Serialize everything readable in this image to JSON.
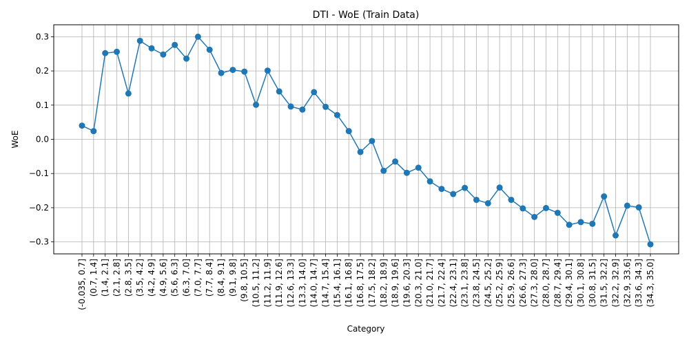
{
  "chart_data": {
    "type": "line",
    "title": "DTI - WoE (Train Data)",
    "xlabel": "Category",
    "ylabel": "WoE",
    "ylim": [
      -0.335,
      0.335
    ],
    "yticks": [
      -0.3,
      -0.2,
      -0.1,
      0.0,
      0.1,
      0.2,
      0.3
    ],
    "ytick_labels": [
      "−0.3",
      "−0.2",
      "−0.1",
      "0.0",
      "0.1",
      "0.2",
      "0.3"
    ],
    "grid": true,
    "color": "#1f77b4",
    "marker": "circle",
    "categories": [
      "(-0.035, 0.7]",
      "(0.7, 1.4]",
      "(1.4, 2.1]",
      "(2.1, 2.8]",
      "(2.8, 3.5]",
      "(3.5, 4.2]",
      "(4.2, 4.9]",
      "(4.9, 5.6]",
      "(5.6, 6.3]",
      "(6.3, 7.0]",
      "(7.0, 7.7]",
      "(7.7, 8.4]",
      "(8.4, 9.1]",
      "(9.1, 9.8]",
      "(9.8, 10.5]",
      "(10.5, 11.2]",
      "(11.2, 11.9]",
      "(11.9, 12.6]",
      "(12.6, 13.3]",
      "(13.3, 14.0]",
      "(14.0, 14.7]",
      "(14.7, 15.4]",
      "(15.4, 16.1]",
      "(16.1, 16.8]",
      "(16.8, 17.5]",
      "(17.5, 18.2]",
      "(18.2, 18.9]",
      "(18.9, 19.6]",
      "(19.6, 20.3]",
      "(20.3, 21.0]",
      "(21.0, 21.7]",
      "(21.7, 22.4]",
      "(22.4, 23.1]",
      "(23.1, 23.8]",
      "(23.8, 24.5]",
      "(24.5, 25.2]",
      "(25.2, 25.9]",
      "(25.9, 26.6]",
      "(26.6, 27.3]",
      "(27.3, 28.0]",
      "(28.0, 28.7]",
      "(28.7, 29.4]",
      "(29.4, 30.1]",
      "(30.1, 30.8]",
      "(30.8, 31.5]",
      "(31.5, 32.2]",
      "(32.2, 32.9]",
      "(32.9, 33.6]",
      "(33.6, 34.3]",
      "(34.3, 35.0]"
    ],
    "values": [
      0.04,
      0.024,
      0.252,
      0.256,
      0.134,
      0.288,
      0.266,
      0.248,
      0.276,
      0.236,
      0.3,
      0.262,
      0.194,
      0.203,
      0.198,
      0.101,
      0.201,
      0.14,
      0.096,
      0.087,
      0.138,
      0.095,
      0.071,
      0.024,
      -0.037,
      -0.005,
      -0.092,
      -0.065,
      -0.098,
      -0.083,
      -0.123,
      -0.145,
      -0.16,
      -0.142,
      -0.177,
      -0.187,
      -0.141,
      -0.177,
      -0.202,
      -0.227,
      -0.201,
      -0.215,
      -0.25,
      -0.242,
      -0.247,
      -0.167,
      -0.281,
      -0.194,
      -0.199,
      -0.307
    ]
  }
}
